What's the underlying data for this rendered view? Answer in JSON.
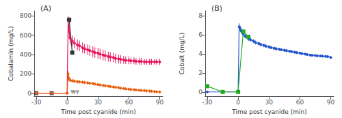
{
  "chart_data": [
    {
      "type": "line",
      "title": "(A)",
      "xlabel": "Time post cyanide (min)",
      "ylabel": "Cobalamin (mg/L)",
      "xlim": [
        -32,
        93
      ],
      "ylim": [
        -30,
        850
      ],
      "xticks": [
        -30,
        0,
        30,
        60,
        90
      ],
      "yticks": [
        0,
        200,
        400,
        600,
        800
      ],
      "grid": false,
      "series": [
        {
          "type": "line",
          "marker": "circle",
          "line_style": "solid",
          "color": "#e8145a",
          "x": [
            -30,
            -15,
            0,
            1,
            2,
            3,
            5,
            7,
            10,
            12,
            15,
            17,
            20,
            22,
            25,
            27,
            30,
            32,
            35,
            37,
            40,
            42,
            45,
            47,
            50,
            52,
            55,
            57,
            60,
            62,
            65,
            67,
            70,
            72,
            75,
            77,
            80,
            82,
            85,
            87,
            90
          ],
          "values": [
            2,
            2,
            2,
            760,
            640,
            570,
            540,
            520,
            500,
            490,
            470,
            460,
            450,
            440,
            430,
            420,
            415,
            405,
            395,
            390,
            380,
            375,
            370,
            360,
            355,
            350,
            345,
            340,
            340,
            335,
            335,
            330,
            330,
            330,
            325,
            325,
            325,
            325,
            325,
            325,
            325
          ],
          "errors": [
            1,
            1,
            1,
            35,
            70,
            60,
            55,
            55,
            55,
            55,
            55,
            50,
            55,
            55,
            55,
            55,
            55,
            55,
            55,
            55,
            50,
            50,
            50,
            50,
            45,
            45,
            40,
            40,
            40,
            35,
            35,
            35,
            35,
            35,
            30,
            30,
            30,
            30,
            30,
            30,
            30
          ]
        },
        {
          "type": "line",
          "marker": "diamond",
          "line_style": "solid",
          "color": "#e86010",
          "x": [
            -30,
            -15,
            0,
            1,
            2,
            3,
            5,
            7,
            10,
            12,
            15,
            17,
            20,
            22,
            25,
            27,
            30,
            32,
            35,
            37,
            40,
            42,
            45,
            47,
            50,
            52,
            55,
            57,
            60,
            62,
            65,
            67,
            70,
            72,
            75,
            77,
            80,
            82,
            85,
            87,
            90
          ],
          "values": [
            2,
            2,
            2,
            200,
            150,
            135,
            130,
            125,
            120,
            118,
            115,
            112,
            108,
            105,
            100,
            95,
            90,
            86,
            82,
            78,
            74,
            70,
            66,
            62,
            58,
            54,
            50,
            46,
            42,
            40,
            37,
            35,
            32,
            30,
            28,
            26,
            23,
            21,
            18,
            16,
            14
          ],
          "errors": [
            1,
            1,
            1,
            30,
            22,
            20,
            18,
            18,
            18,
            16,
            16,
            15,
            15,
            14,
            14,
            13,
            13,
            12,
            12,
            11,
            11,
            10,
            10,
            9,
            9,
            8,
            8,
            7,
            7,
            7,
            6,
            6,
            6,
            5,
            5,
            5,
            4,
            4,
            4,
            3,
            3
          ]
        },
        {
          "type": "scatter",
          "marker": "square",
          "color": "#333333",
          "x": [
            -30,
            -15
          ],
          "values": [
            2,
            2
          ]
        },
        {
          "type": "line",
          "marker": "square",
          "line_style": "solid",
          "color": "#333333",
          "x": [
            2,
            5
          ],
          "values": [
            760,
            420
          ],
          "errors": [
            20,
            20
          ]
        },
        {
          "type": "scatter",
          "marker": "triangle_down",
          "color": "#888888",
          "x": [
            5,
            7,
            10
          ],
          "values": [
            12,
            10,
            9
          ]
        }
      ]
    },
    {
      "type": "line",
      "title": "(B)",
      "xlabel": "Time post cyanide (min)",
      "ylabel": "Cobalt (mg/L)",
      "xlim": [
        -32,
        93
      ],
      "ylim": [
        -0.4,
        8.5
      ],
      "xticks": [
        -30,
        0,
        30,
        60,
        90
      ],
      "yticks": [
        0,
        2,
        4,
        6,
        8
      ],
      "grid": false,
      "series": [
        {
          "type": "line",
          "marker": "circle",
          "line_style": "solid",
          "color": "#2255cc",
          "x": [
            -30,
            -15,
            0,
            1,
            2,
            3,
            5,
            7,
            10,
            12,
            15,
            17,
            20,
            22,
            25,
            27,
            30,
            32,
            35,
            37,
            40,
            42,
            45,
            47,
            50,
            52,
            55,
            57,
            60,
            62,
            65,
            67,
            70,
            72,
            75,
            77,
            80,
            82,
            85,
            87,
            90
          ],
          "values": [
            0.05,
            0.05,
            0.05,
            6.85,
            6.65,
            6.4,
            6.1,
            5.85,
            5.6,
            5.5,
            5.35,
            5.2,
            5.1,
            5.0,
            4.9,
            4.82,
            4.75,
            4.68,
            4.6,
            4.55,
            4.5,
            4.45,
            4.4,
            4.35,
            4.3,
            4.25,
            4.2,
            4.15,
            4.1,
            4.05,
            4.0,
            3.95,
            3.9,
            3.87,
            3.85,
            3.82,
            3.8,
            3.78,
            3.76,
            3.74,
            3.65
          ],
          "errors": [
            0.02,
            0.02,
            0.02,
            0.35,
            0.3,
            0.28,
            0.25,
            0.22,
            0.22,
            0.2,
            0.2,
            0.2,
            0.2,
            0.18,
            0.18,
            0.18,
            0.18,
            0.16,
            0.16,
            0.16,
            0.15,
            0.15,
            0.15,
            0.14,
            0.14,
            0.14,
            0.13,
            0.13,
            0.13,
            0.12,
            0.12,
            0.12,
            0.12,
            0.12,
            0.12,
            0.12,
            0.12,
            0.12,
            0.12,
            0.12,
            0.12
          ]
        },
        {
          "type": "line",
          "marker": "square",
          "line_style": "solid",
          "color": "#22aa22",
          "x": [
            -30,
            -15,
            0,
            5,
            10
          ],
          "values": [
            0.65,
            0.05,
            0.05,
            6.35,
            5.8
          ]
        }
      ]
    }
  ]
}
